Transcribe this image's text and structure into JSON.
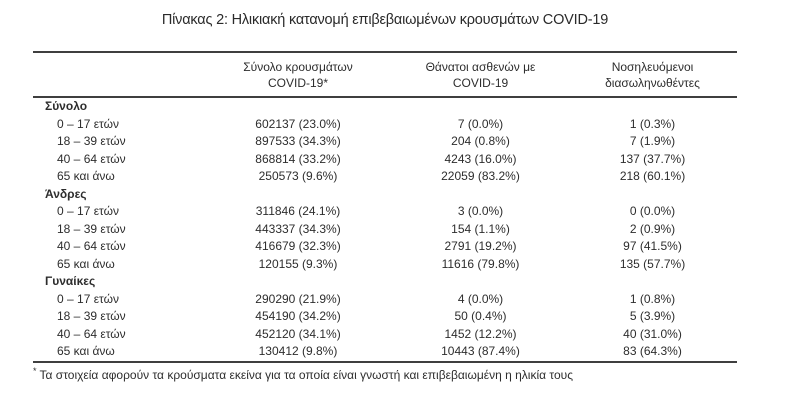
{
  "title": "Πίνακας 2: Ηλικιακή κατανομή επιβεβαιωμένων κρουσμάτων COVID-19",
  "table": {
    "col_headers": [
      {
        "line1": "Σύνολο κρουσμάτων",
        "line2": "COVID-19*"
      },
      {
        "line1": "Θάνατοι ασθενών με",
        "line2": "COVID-19"
      },
      {
        "line1": "Νοσηλευόμενοι",
        "line2": "διασωληνωθέντες"
      }
    ],
    "sections": [
      {
        "label": "Σύνολο",
        "rows": [
          {
            "age": "0 – 17 ετών",
            "cases": "602137 (23.0%)",
            "deaths": "7 (0.0%)",
            "intubated": "1 (0.3%)"
          },
          {
            "age": "18 – 39 ετών",
            "cases": "897533 (34.3%)",
            "deaths": "204 (0.8%)",
            "intubated": "7 (1.9%)"
          },
          {
            "age": "40 – 64 ετών",
            "cases": "868814 (33.2%)",
            "deaths": "4243 (16.0%)",
            "intubated": "137 (37.7%)"
          },
          {
            "age": "65 και άνω",
            "cases": "250573 (9.6%)",
            "deaths": "22059 (83.2%)",
            "intubated": "218 (60.1%)"
          }
        ]
      },
      {
        "label": "Άνδρες",
        "rows": [
          {
            "age": "0 – 17 ετών",
            "cases": "311846 (24.1%)",
            "deaths": "3 (0.0%)",
            "intubated": "0 (0.0%)"
          },
          {
            "age": "18 – 39 ετών",
            "cases": "443337 (34.3%)",
            "deaths": "154 (1.1%)",
            "intubated": "2 (0.9%)"
          },
          {
            "age": "40 – 64 ετών",
            "cases": "416679 (32.3%)",
            "deaths": "2791 (19.2%)",
            "intubated": "97 (41.5%)"
          },
          {
            "age": "65 και άνω",
            "cases": "120155 (9.3%)",
            "deaths": "11616 (79.8%)",
            "intubated": "135 (57.7%)"
          }
        ]
      },
      {
        "label": "Γυναίκες",
        "rows": [
          {
            "age": "0 – 17 ετών",
            "cases": "290290 (21.9%)",
            "deaths": "4 (0.0%)",
            "intubated": "1 (0.8%)"
          },
          {
            "age": "18 – 39 ετών",
            "cases": "454190 (34.2%)",
            "deaths": "50 (0.4%)",
            "intubated": "5 (3.9%)"
          },
          {
            "age": "40 – 64 ετών",
            "cases": "452120 (34.1%)",
            "deaths": "1452 (12.2%)",
            "intubated": "40 (31.0%)"
          },
          {
            "age": "65 και άνω",
            "cases": "130412 (9.8%)",
            "deaths": "10443 (87.4%)",
            "intubated": "83 (64.3%)"
          }
        ]
      }
    ]
  },
  "footnote": {
    "marker": "*",
    "text": "Τα στοιχεία αφορούν τα κρούσματα εκείνα για τα οποία είναι γνωστή και επιβεβαιωμένη η ηλικία τους"
  },
  "colors": {
    "text": "#2d2d2d",
    "rule": "#3f3f3f",
    "background": "#ffffff"
  }
}
